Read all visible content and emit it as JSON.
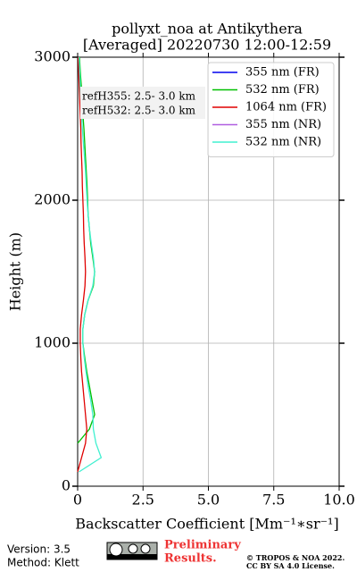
{
  "chart_data": {
    "type": "profile",
    "title": "pollyxt_noa at Antikythera",
    "subtitle": "[Averaged] 20220730 12:00-12:59",
    "x_label": "Backscatter Coefficient [Mm⁻¹∗sr⁻¹]",
    "y_label": "Height (m)",
    "xlim": [
      0,
      10
    ],
    "ylim": [
      0,
      3000
    ],
    "xticks": [
      0,
      2.5,
      {
        "value": 5,
        "label": "5.0"
      },
      7.5,
      {
        "value": 10,
        "label": "10.0"
      }
    ],
    "yticks": [
      0,
      1000,
      2000,
      3000
    ],
    "grid": true,
    "legend": "upper right",
    "annotations": [
      "refH355:  2.5- 3.0 km",
      "refH532:  2.5- 3.0 km"
    ],
    "y": [
      0,
      100,
      200,
      300,
      400,
      500,
      600,
      700,
      800,
      900,
      1000,
      1100,
      1200,
      1300,
      1400,
      1500,
      1600,
      1700,
      1800,
      1900,
      2000,
      2100,
      2200,
      2300,
      2400,
      2500,
      2600,
      2700,
      2800,
      2900,
      3000
    ],
    "series": [
      {
        "name": "355 nm (FR)",
        "color": "#0000ee",
        "values": [
          null,
          null,
          null,
          null,
          null,
          null,
          null,
          null,
          null,
          null,
          null,
          null,
          null,
          null,
          null,
          null,
          null,
          null,
          null,
          null,
          null,
          null,
          null,
          null,
          null,
          null,
          null,
          null,
          null,
          null,
          null
        ]
      },
      {
        "name": "532 nm (FR)",
        "color": "#00c000",
        "values": [
          null,
          null,
          null,
          0.0,
          0.45,
          0.65,
          0.55,
          0.45,
          0.35,
          0.27,
          0.2,
          0.2,
          0.27,
          0.4,
          0.6,
          0.65,
          0.58,
          0.5,
          0.45,
          0.4,
          0.38,
          0.36,
          0.33,
          0.3,
          0.27,
          0.24,
          0.2,
          0.17,
          0.14,
          0.1,
          0.07
        ]
      },
      {
        "name": "1064 nm (FR)",
        "color": "#e00000",
        "values": [
          null,
          0.0,
          0.15,
          0.3,
          0.35,
          0.3,
          0.25,
          0.2,
          0.15,
          0.12,
          0.1,
          0.1,
          0.15,
          0.22,
          0.28,
          0.3,
          0.28,
          0.25,
          0.23,
          0.22,
          0.2,
          0.18,
          0.17,
          0.15,
          0.13,
          0.12,
          0.1,
          0.08,
          0.06,
          0.04,
          0.02
        ]
      },
      {
        "name": "355 nm (NR)",
        "color": "#b05ee0",
        "values": [
          null,
          null,
          null,
          null,
          null,
          null,
          null,
          null,
          null,
          null,
          null,
          null,
          null,
          null,
          null,
          null,
          null,
          null,
          null,
          null,
          null,
          null,
          null,
          null,
          null,
          null,
          null,
          null,
          null,
          null,
          null
        ]
      },
      {
        "name": "532 nm (NR)",
        "color": "#40f0d0",
        "values": [
          null,
          0.05,
          0.9,
          0.7,
          0.6,
          0.58,
          0.5,
          0.4,
          0.32,
          0.25,
          0.2,
          0.2,
          0.27,
          0.4,
          0.58,
          0.65,
          0.6,
          0.52,
          0.45,
          0.4,
          0.36,
          0.33,
          0.3,
          0.26,
          0.22,
          0.18,
          0.15,
          0.12,
          0.1,
          0.08,
          0.05
        ]
      }
    ],
    "footer": {
      "version": "Version: 3.5",
      "method": "Method: Klett",
      "status_1": "Preliminary",
      "status_2": "Results.",
      "copyright": "© TROPOS & NOA 2022.",
      "license": "CC BY SA 4.0 License."
    }
  }
}
